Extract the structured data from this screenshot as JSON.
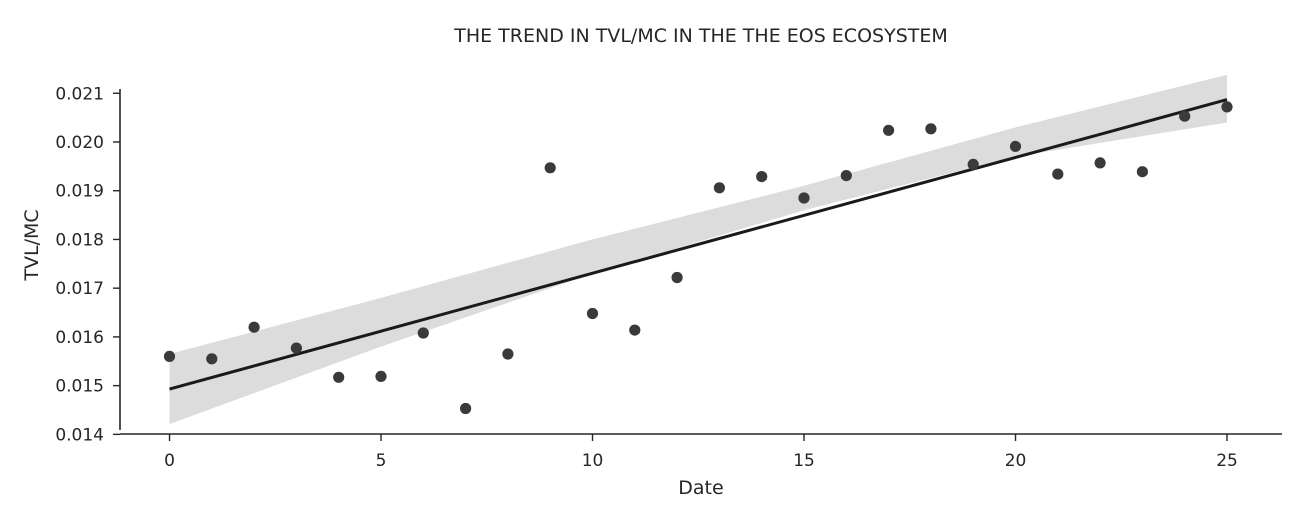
{
  "chart_data": {
    "type": "scatter",
    "title": "THE TREND IN TVL/MC IN THE THE EOS ECOSYSTEM",
    "xlabel": "Date",
    "ylabel": "TVL/MC",
    "xlim": [
      -1.1,
      26.3
    ],
    "ylim": [
      0.01395,
      0.02135
    ],
    "x_ticks": [
      0,
      5,
      10,
      15,
      20,
      25
    ],
    "x_tick_labels": [
      "0",
      "5",
      "10",
      "15",
      "20",
      "25"
    ],
    "y_ticks": [
      0.014,
      0.015,
      0.016,
      0.017,
      0.018,
      0.019,
      0.02,
      0.021
    ],
    "y_tick_labels": [
      "0.014",
      "0.015",
      "0.016",
      "0.017",
      "0.018",
      "0.019",
      "0.020",
      "0.021"
    ],
    "grid": false,
    "colors": {
      "points": "#3a3a3a",
      "regression_line": "#1a1a1a",
      "confidence_band": "#dcdcdc",
      "axes": "#262626"
    },
    "series": [
      {
        "x": [
          0,
          1,
          2,
          3,
          4,
          5,
          6,
          7,
          8,
          9,
          10,
          11,
          12,
          13,
          14,
          15,
          16,
          17,
          18,
          19,
          20,
          21,
          22,
          23,
          24,
          25
        ],
        "y": [
          0.0156,
          0.01555,
          0.0162,
          0.01577,
          0.01517,
          0.01519,
          0.01608,
          0.01453,
          0.01565,
          0.01947,
          0.01648,
          0.01614,
          0.01722,
          0.01906,
          0.01929,
          0.01885,
          0.01931,
          0.02024,
          0.02027,
          0.01954,
          0.01991,
          0.01934,
          0.01957,
          0.01939,
          0.02053,
          0.02072
        ]
      }
    ],
    "regression": {
      "x": [
        0,
        25
      ],
      "y": [
        0.01493,
        0.02087
      ]
    },
    "confidence_band": {
      "x": [
        0,
        5,
        10,
        15,
        20,
        25
      ],
      "lower": [
        0.01421,
        0.0158,
        0.0173,
        0.0186,
        0.0197,
        0.0204
      ],
      "upper": [
        0.01565,
        0.0168,
        0.018,
        0.0191,
        0.0203,
        0.02138
      ]
    }
  }
}
